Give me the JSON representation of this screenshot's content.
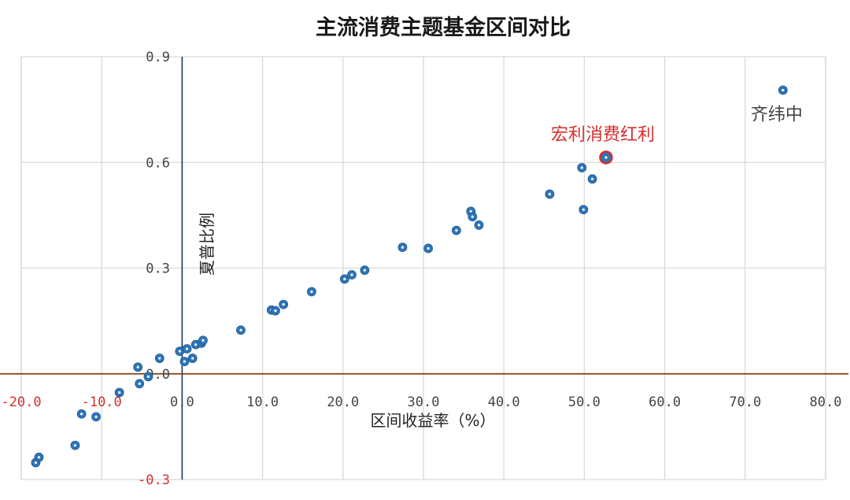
{
  "chart_data": {
    "type": "scatter",
    "title": "主流消费主题基金区间对比",
    "xlabel": "区间收益率（%）",
    "ylabel": "夏普比例",
    "xlim": [
      -20,
      80
    ],
    "ylim": [
      -0.3,
      0.9
    ],
    "x_ticks": [
      "-20.0",
      "-10.0",
      "0.0",
      "10.0",
      "20.0",
      "30.0",
      "40.0",
      "50.0",
      "60.0",
      "70.0",
      "80.0"
    ],
    "y_ticks": [
      "-0.3",
      "0.0",
      "0.3",
      "0.6",
      "0.9"
    ],
    "grid": true,
    "colors": {
      "point": "#2e75b6",
      "highlight": "#d62e2e",
      "y_axis_line": "#1f3864",
      "x_axis_line": "#843c0c",
      "negative_tick": "#d62e2e"
    },
    "points": [
      {
        "x": -18.2,
        "y": -0.252
      },
      {
        "x": -17.8,
        "y": -0.237
      },
      {
        "x": -13.3,
        "y": -0.203
      },
      {
        "x": -12.5,
        "y": -0.114
      },
      {
        "x": -10.7,
        "y": -0.122
      },
      {
        "x": -7.8,
        "y": -0.053
      },
      {
        "x": -5.3,
        "y": -0.028
      },
      {
        "x": -5.5,
        "y": 0.019
      },
      {
        "x": -4.2,
        "y": -0.008
      },
      {
        "x": -2.8,
        "y": 0.044
      },
      {
        "x": -0.3,
        "y": 0.064
      },
      {
        "x": 0.3,
        "y": 0.035
      },
      {
        "x": 0.6,
        "y": 0.071
      },
      {
        "x": 1.3,
        "y": 0.044
      },
      {
        "x": 1.7,
        "y": 0.083
      },
      {
        "x": 2.4,
        "y": 0.087
      },
      {
        "x": 2.6,
        "y": 0.095
      },
      {
        "x": 7.3,
        "y": 0.124
      },
      {
        "x": 11.1,
        "y": 0.181
      },
      {
        "x": 11.6,
        "y": 0.179
      },
      {
        "x": 12.6,
        "y": 0.197
      },
      {
        "x": 16.1,
        "y": 0.233
      },
      {
        "x": 20.2,
        "y": 0.269
      },
      {
        "x": 21.1,
        "y": 0.281
      },
      {
        "x": 22.7,
        "y": 0.294
      },
      {
        "x": 27.4,
        "y": 0.359
      },
      {
        "x": 30.6,
        "y": 0.356
      },
      {
        "x": 34.1,
        "y": 0.407
      },
      {
        "x": 35.9,
        "y": 0.461
      },
      {
        "x": 36.1,
        "y": 0.446
      },
      {
        "x": 36.9,
        "y": 0.422
      },
      {
        "x": 45.7,
        "y": 0.51
      },
      {
        "x": 49.7,
        "y": 0.585
      },
      {
        "x": 49.9,
        "y": 0.466
      },
      {
        "x": 51.0,
        "y": 0.553
      },
      {
        "x": 74.7,
        "y": 0.805
      }
    ],
    "highlight": {
      "x": 52.7,
      "y": 0.614
    },
    "annotations": [
      {
        "text": "宏利消费红利",
        "x": 52.7,
        "y": 0.614,
        "style": "highlight"
      },
      {
        "text": "齐纬中",
        "x": 74.7,
        "y": 0.805,
        "style": "normal"
      }
    ]
  }
}
